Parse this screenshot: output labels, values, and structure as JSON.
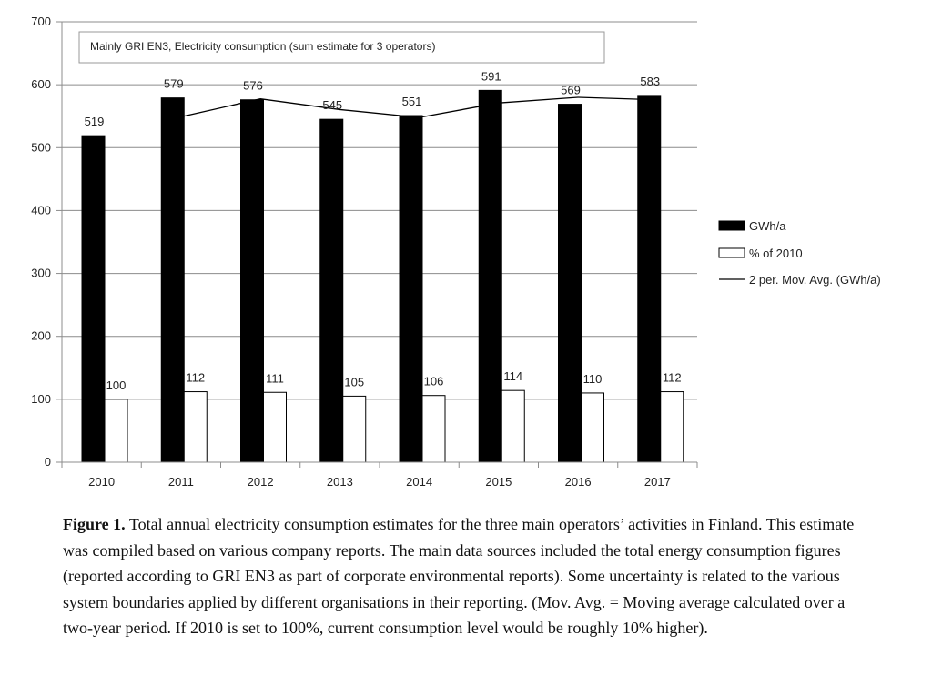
{
  "chart_data": {
    "type": "bar",
    "categories": [
      "2010",
      "2011",
      "2012",
      "2013",
      "2014",
      "2015",
      "2016",
      "2017"
    ],
    "series": [
      {
        "name": "GWh/a",
        "type": "bar",
        "color": "#000000",
        "values": [
          519,
          579,
          576,
          545,
          551,
          591,
          569,
          583
        ]
      },
      {
        "name": "% of 2010",
        "type": "bar",
        "color": "#ffffff",
        "values": [
          100,
          112,
          111,
          105,
          106,
          114,
          110,
          112
        ]
      },
      {
        "name": "2 per. Mov. Avg. (GWh/a)",
        "type": "line",
        "color": "#000000",
        "values": [
          null,
          549,
          577.5,
          560.5,
          548,
          571,
          580,
          576
        ]
      }
    ],
    "ylim": [
      0,
      700
    ],
    "yticks": [
      0,
      100,
      200,
      300,
      400,
      500,
      600,
      700
    ],
    "grid": true,
    "legend": "right",
    "annotation": "Mainly GRI EN3, Electricity consumption (sum estimate for 3 operators)"
  },
  "caption": {
    "label": "Figure 1.",
    "text": "Total annual electricity consumption estimates for the three main operators’ activities in Finland. This estimate was compiled based on various company reports. The main data sources included the total energy consumption figures (reported according to GRI EN3 as part of corporate environmental reports). Some uncertainty is related to the various system boundaries applied by different organisations in their reporting. (Mov. Avg. = Moving average calculated over a two-year period. If 2010 is set to 100%, current consumption level would be roughly 10% higher)."
  }
}
